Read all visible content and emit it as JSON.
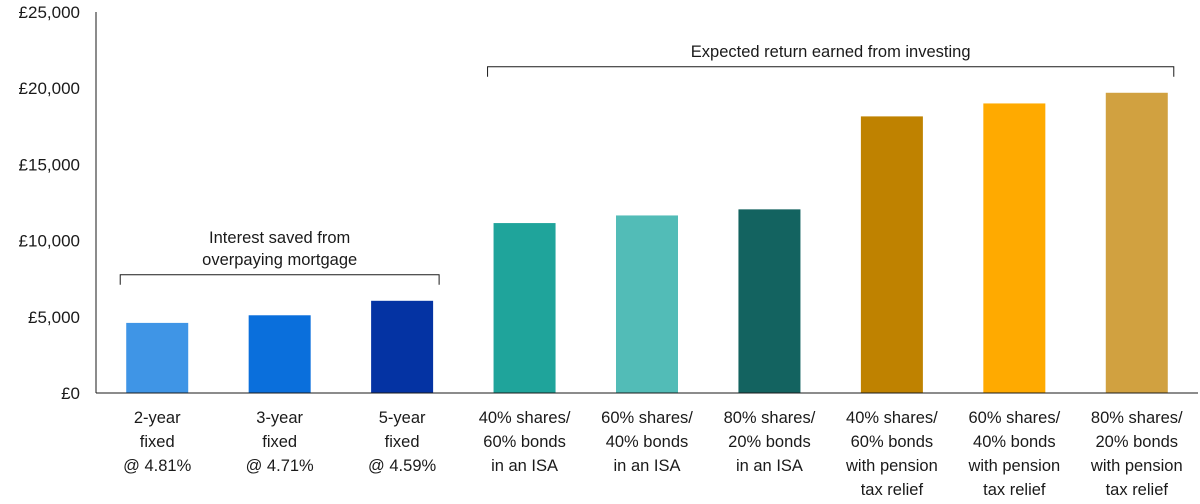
{
  "chart_data": {
    "type": "bar",
    "title": "",
    "xlabel": "",
    "ylabel": "",
    "ylim": [
      0,
      25000
    ],
    "yticks": [
      0,
      5000,
      10000,
      15000,
      20000,
      25000
    ],
    "ytick_labels": [
      "£0",
      "£5,000",
      "£10,000",
      "£15,000",
      "£20,000",
      "£25,000"
    ],
    "grid": false,
    "categories": [
      [
        "2-year",
        "fixed",
        "@ 4.81%"
      ],
      [
        "3-year",
        "fixed",
        "@ 4.71%"
      ],
      [
        "5-year",
        "fixed",
        "@ 4.59%"
      ],
      [
        "40% shares/",
        "60% bonds",
        "in an ISA"
      ],
      [
        "60% shares/",
        "40% bonds",
        "in an ISA"
      ],
      [
        "80% shares/",
        "20% bonds",
        "in an ISA"
      ],
      [
        "40% shares/",
        "60% bonds",
        "with pension",
        "tax relief"
      ],
      [
        "60% shares/",
        "40% bonds",
        "with pension",
        "tax relief"
      ],
      [
        "80% shares/",
        "20% bonds",
        "with pension",
        "tax relief"
      ]
    ],
    "values": [
      4600,
      5100,
      6050,
      11150,
      11650,
      12050,
      18150,
      19000,
      19700
    ],
    "colors": [
      "#3f95e6",
      "#0a6fdc",
      "#0433a3",
      "#1fa49b",
      "#52bcb7",
      "#136360",
      "#bf8200",
      "#ffaa00",
      "#d1a140"
    ],
    "annotations": [
      {
        "lines": [
          "Interest saved from",
          "overpaying mortgage"
        ],
        "from": 0,
        "to": 2
      },
      {
        "lines": [
          "Expected return earned from investing"
        ],
        "from": 3,
        "to": 8
      }
    ]
  }
}
